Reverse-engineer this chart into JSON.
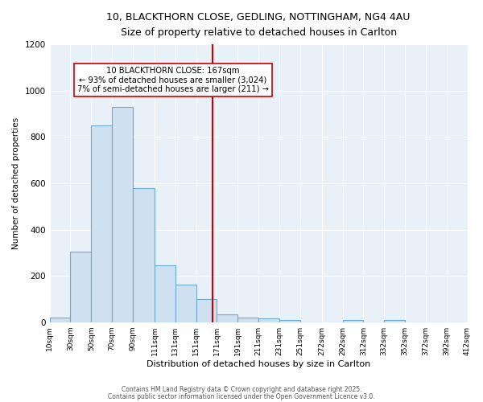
{
  "title_line1": "10, BLACKTHORN CLOSE, GEDLING, NOTTINGHAM, NG4 4AU",
  "title_line2": "Size of property relative to detached houses in Carlton",
  "xlabel": "Distribution of detached houses by size in Carlton",
  "ylabel": "Number of detached properties",
  "bar_edges": [
    10,
    30,
    50,
    70,
    90,
    111,
    131,
    151,
    171,
    191,
    211,
    231,
    251,
    272,
    292,
    312,
    332,
    352,
    372,
    392,
    412
  ],
  "bar_heights": [
    20,
    305,
    850,
    930,
    578,
    245,
    163,
    100,
    35,
    20,
    15,
    10,
    0,
    0,
    10,
    0,
    10,
    0,
    0,
    0
  ],
  "bar_color": "#cfe0f0",
  "bar_edge_color": "#6aaad4",
  "bg_color": "#ffffff",
  "plot_bg_color": "#e8f0f8",
  "grid_color": "#ffffff",
  "vline_x": 167,
  "vline_color": "#cc0000",
  "ylim": [
    0,
    1200
  ],
  "yticks": [
    0,
    200,
    400,
    600,
    800,
    1000,
    1200
  ],
  "annotation_title": "10 BLACKTHORN CLOSE: 167sqm",
  "annotation_line2": "← 93% of detached houses are smaller (3,024)",
  "annotation_line3": "7% of semi-detached houses are larger (211) →",
  "xtick_labels": [
    "10sqm",
    "30sqm",
    "50sqm",
    "70sqm",
    "90sqm",
    "111sqm",
    "131sqm",
    "151sqm",
    "171sqm",
    "191sqm",
    "211sqm",
    "231sqm",
    "251sqm",
    "272sqm",
    "292sqm",
    "312sqm",
    "332sqm",
    "352sqm",
    "372sqm",
    "392sqm",
    "412sqm"
  ],
  "footer_line1": "Contains HM Land Registry data © Crown copyright and database right 2025.",
  "footer_line2": "Contains public sector information licensed under the Open Government Licence v3.0."
}
